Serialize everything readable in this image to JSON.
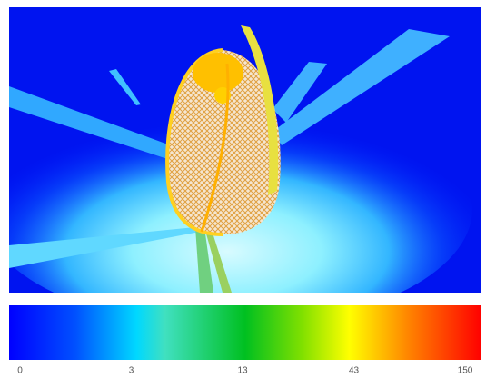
{
  "colorbar": {
    "ticks": [
      0,
      3,
      13,
      43,
      150
    ]
  }
}
